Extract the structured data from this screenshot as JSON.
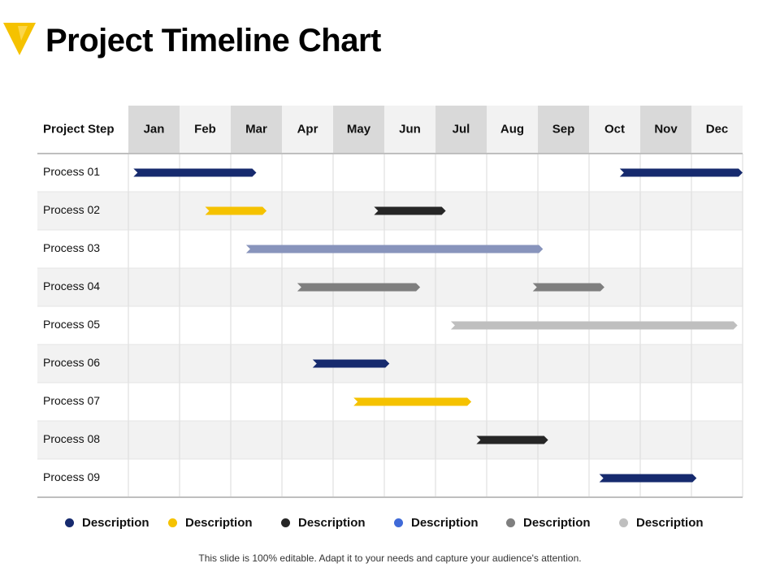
{
  "page": {
    "title": "Project Timeline Chart",
    "footer": "This slide is 100% editable. Adapt it to your needs and capture your audience's attention."
  },
  "logo": {
    "icon": "yellow-triangle-logo-icon",
    "color": "#F5C200"
  },
  "colors": {
    "navy": "#162A6E",
    "yellow": "#F5C200",
    "black": "#262626",
    "slate": "#8894BC",
    "gray": "#7F7F7F",
    "lightgray": "#BFBFBF",
    "blue": "#3F6AD8",
    "header_shaded": "#D9D9D9",
    "header_light": "#F2F2F2",
    "row_alt": "#F2F2F2",
    "grid": "#D9D9D9"
  },
  "chart_data": {
    "type": "gantt",
    "title": "Project Timeline Chart",
    "row_header": "Project Step",
    "months": [
      "Jan",
      "Feb",
      "Mar",
      "Apr",
      "May",
      "Jun",
      "Jul",
      "Aug",
      "Sep",
      "Oct",
      "Nov",
      "Dec"
    ],
    "shaded_months": [
      "Jan",
      "Mar",
      "May",
      "Jul",
      "Sep",
      "Nov"
    ],
    "x_unit": "month (1 = start of Jan, 13 = end of Dec)",
    "tasks": [
      {
        "name": "Process 01",
        "bars": [
          {
            "start": 1.1,
            "end": 3.5,
            "color": "navy"
          },
          {
            "start": 10.6,
            "end": 13.0,
            "color": "navy"
          }
        ]
      },
      {
        "name": "Process 02",
        "bars": [
          {
            "start": 2.5,
            "end": 3.7,
            "color": "yellow"
          },
          {
            "start": 5.8,
            "end": 7.2,
            "color": "black"
          }
        ]
      },
      {
        "name": "Process 03",
        "bars": [
          {
            "start": 3.3,
            "end": 9.1,
            "color": "slate"
          }
        ]
      },
      {
        "name": "Process 04",
        "bars": [
          {
            "start": 4.3,
            "end": 6.7,
            "color": "gray"
          },
          {
            "start": 8.9,
            "end": 10.3,
            "color": "gray"
          }
        ]
      },
      {
        "name": "Process 05",
        "bars": [
          {
            "start": 7.3,
            "end": 12.9,
            "color": "lightgray"
          }
        ]
      },
      {
        "name": "Process 06",
        "bars": [
          {
            "start": 4.6,
            "end": 6.1,
            "color": "navy"
          }
        ]
      },
      {
        "name": "Process 07",
        "bars": [
          {
            "start": 5.4,
            "end": 7.7,
            "color": "yellow"
          }
        ]
      },
      {
        "name": "Process 08",
        "bars": [
          {
            "start": 7.8,
            "end": 9.2,
            "color": "black"
          }
        ]
      },
      {
        "name": "Process 09",
        "bars": [
          {
            "start": 10.2,
            "end": 12.1,
            "color": "navy"
          }
        ]
      }
    ],
    "legend": [
      {
        "label": "Description",
        "color": "#162A6E"
      },
      {
        "label": "Description",
        "color": "#F5C200"
      },
      {
        "label": "Description",
        "color": "#262626"
      },
      {
        "label": "Description",
        "color": "#3F6AD8"
      },
      {
        "label": "Description",
        "color": "#7F7F7F"
      },
      {
        "label": "Description",
        "color": "#BFBFBF"
      }
    ],
    "grid": true,
    "legend_placement": "bottom"
  }
}
